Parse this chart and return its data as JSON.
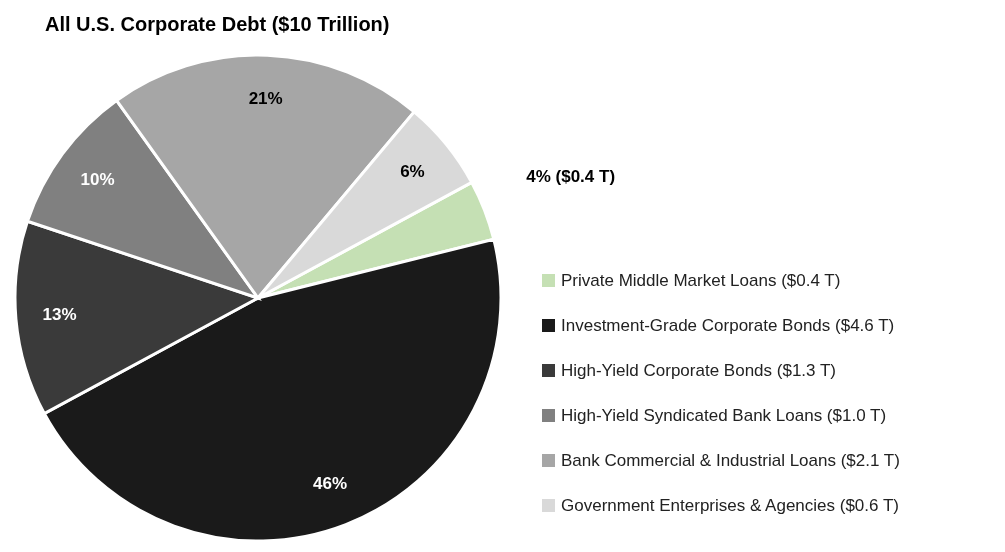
{
  "chart_data": {
    "type": "pie",
    "title": "All U.S. Corporate Debt ($10 Trillion)",
    "categories": [
      "Private Middle Market Loans ($0.4 T)",
      "Investment-Grade Corporate Bonds ($4.6 T)",
      "High-Yield Corporate Bonds ($1.3 T)",
      "High-Yield Syndicated Bank Loans ($1.0 T)",
      "Bank Commercial & Industrial Loans ($2.1 T)",
      "Government Enterprises & Agencies ($0.6 T)"
    ],
    "values": [
      4,
      46,
      13,
      10,
      21,
      6
    ],
    "colors": [
      "#c5e0b4",
      "#1a1a1a",
      "#3a3a3a",
      "#808080",
      "#a6a6a6",
      "#d9d9d9"
    ],
    "value_labels": [
      "4% ($0.4 T)",
      "46%",
      "13%",
      "10%",
      "21%",
      "6%"
    ],
    "legend": "bottom right"
  }
}
